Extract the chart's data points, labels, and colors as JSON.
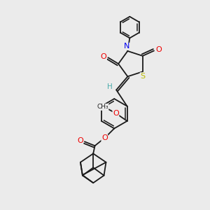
{
  "bg_color": "#ebebeb",
  "bond_color": "#1a1a1a",
  "atom_colors": {
    "N": "#0000ee",
    "O": "#ee0000",
    "S": "#bbbb00",
    "C": "#1a1a1a",
    "H": "#4aabab"
  },
  "lw": 1.3
}
